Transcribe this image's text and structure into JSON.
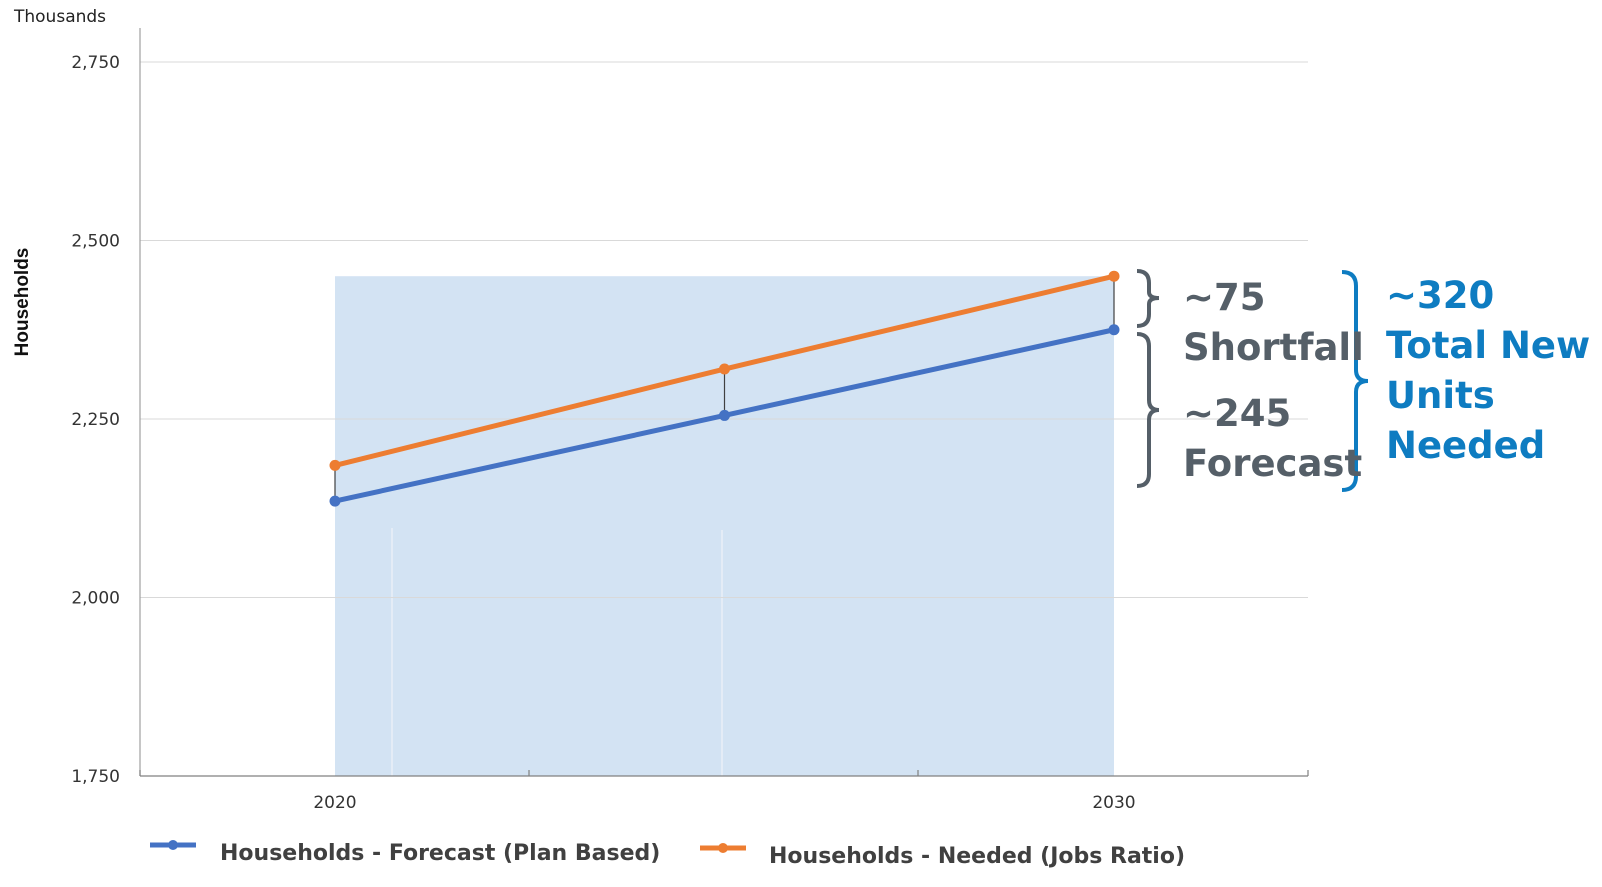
{
  "chart_data": {
    "type": "line",
    "unit_label": "Thousands",
    "ylabel": "Households",
    "xlabel": "",
    "title": "",
    "x": [
      2020,
      2025,
      2030
    ],
    "xticks": [
      "2020",
      "2030"
    ],
    "xlim": [
      2015,
      2030
    ],
    "ylim": [
      1750,
      2800
    ],
    "yticks": [
      1750,
      2000,
      2250,
      2500,
      2750
    ],
    "ytick_labels": [
      "1,750",
      "2,000",
      "2,250",
      "2,500",
      "2,750"
    ],
    "grid": true,
    "legend_position": "bottom",
    "series": [
      {
        "name": "Households - Forecast (Plan Based)",
        "values": [
          2135,
          2255,
          2375
        ],
        "color": "#4472c4"
      },
      {
        "name": "Households - Needed (Jobs Ratio)",
        "values": [
          2185,
          2320,
          2450
        ],
        "color": "#ed7d31"
      }
    ],
    "shaded_region": {
      "x": [
        2020,
        2030
      ],
      "y": [
        1750,
        2450
      ],
      "color": "#d3e3f3"
    },
    "annotations": [
      {
        "lines": [
          "~75",
          "Shortfall"
        ],
        "color": "#555f68"
      },
      {
        "lines": [
          "~245",
          "Forecast"
        ],
        "color": "#555f68"
      },
      {
        "lines": [
          "~320",
          "Total New",
          "Units",
          "Needed"
        ],
        "color": "#0e7cc1"
      }
    ]
  }
}
